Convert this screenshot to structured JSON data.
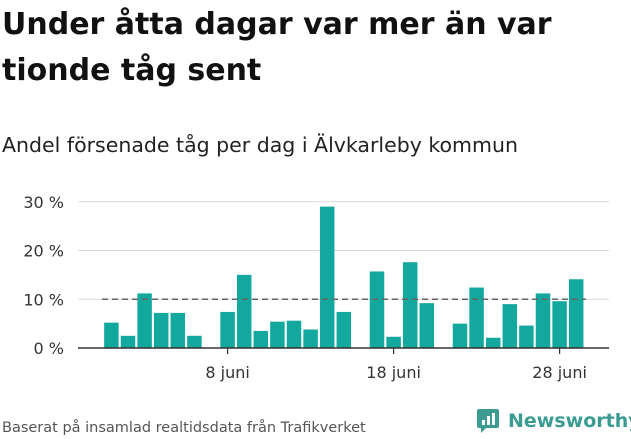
{
  "header": {
    "title": "Under åtta dagar var mer än var tionde tåg sent",
    "subtitle": "Andel försenade tåg per dag i Älvkarleby kommun"
  },
  "footer": {
    "source": "Baserat på insamlad realtidsdata från Trafikverket",
    "brand": "Newsworthy"
  },
  "colors": {
    "bar": "#13a89e",
    "reference_line": "#666666",
    "grid": "#d9d9d9",
    "axis": "#333333",
    "brand": "#3b9b90"
  },
  "chart_data": {
    "type": "bar",
    "title": "Andel försenade tåg per dag i Älvkarleby kommun",
    "xlabel": "",
    "ylabel": "",
    "unit": "%",
    "ylim": [
      0,
      32
    ],
    "yticks": [
      0,
      10,
      20,
      30
    ],
    "ytick_labels": [
      "0 %",
      "10 %",
      "20 %",
      "30 %"
    ],
    "xtick_days": [
      8,
      18,
      28
    ],
    "xtick_labels": [
      "8 juni",
      "18 juni",
      "28 juni"
    ],
    "days": [
      1,
      2,
      3,
      4,
      5,
      6,
      7,
      8,
      9,
      10,
      11,
      12,
      13,
      14,
      15,
      16,
      17,
      18,
      19,
      20,
      21,
      22,
      23,
      24,
      25,
      26,
      27,
      28,
      29,
      30
    ],
    "values": [
      5.2,
      2.5,
      11.2,
      7.2,
      7.2,
      2.5,
      null,
      7.4,
      15.0,
      3.5,
      5.4,
      5.6,
      3.8,
      29.0,
      7.4,
      null,
      15.7,
      2.3,
      17.6,
      9.2,
      null,
      5.0,
      12.4,
      2.1,
      9.0,
      4.6,
      11.2,
      9.6,
      14.1,
      null
    ],
    "reference_line": 10,
    "grid": true
  }
}
